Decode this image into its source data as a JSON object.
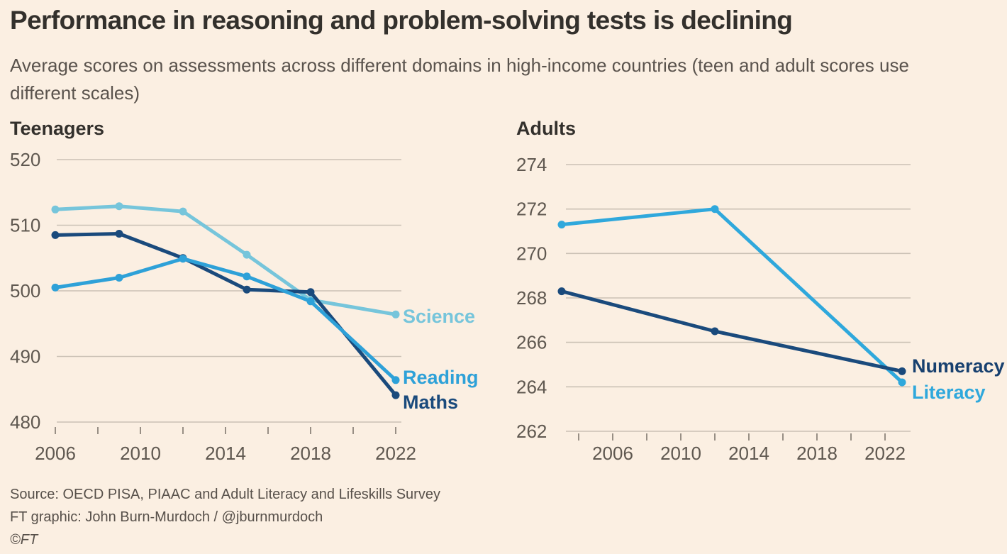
{
  "header": {
    "title": "Performance in reasoning and problem-solving tests is declining",
    "subtitle": "Average scores on assessments across different domains in high-income countries (teen and adult scores use different scales)"
  },
  "chart_data": [
    {
      "type": "line",
      "title": "Teenagers",
      "x": [
        2006,
        2009,
        2012,
        2015,
        2018,
        2022
      ],
      "series": [
        {
          "name": "Science",
          "color": "#76C5DB",
          "label_color": "#76C5DB",
          "values": [
            512.4,
            512.9,
            512.1,
            505.5,
            498.6,
            496.4
          ]
        },
        {
          "name": "Reading",
          "color": "#2EA1D8",
          "label_color": "#2EA1D8",
          "values": [
            500.5,
            502.0,
            504.9,
            502.2,
            498.4,
            486.4
          ]
        },
        {
          "name": "Maths",
          "color": "#1A4A7C",
          "label_color": "#1A4A7C",
          "values": [
            508.5,
            508.7,
            505.0,
            500.2,
            499.8,
            484.1
          ]
        }
      ],
      "ylim": [
        480,
        520
      ],
      "yticks": [
        "520",
        "510",
        "500",
        "490",
        "480"
      ],
      "ytick_values": [
        520,
        510,
        500,
        490,
        480
      ],
      "xticks": [
        2006,
        2008,
        2010,
        2012,
        2014,
        2016,
        2018,
        2020,
        2022
      ],
      "xtick_labels": [
        "2006",
        "2010",
        "2014",
        "2018",
        "2022"
      ],
      "xtick_label_values": [
        2006,
        2010,
        2014,
        2018,
        2022
      ],
      "grid": true,
      "legend_position": "line-end-labels"
    },
    {
      "type": "line",
      "title": "Adults",
      "x": [
        2003,
        2012,
        2023
      ],
      "series": [
        {
          "name": "Numeracy",
          "color": "#1A4A7C",
          "label_color": "#17406F",
          "values": [
            268.3,
            266.5,
            264.7
          ]
        },
        {
          "name": "Literacy",
          "color": "#2FA8DC",
          "label_color": "#2FA8DC",
          "values": [
            271.3,
            272.0,
            264.2
          ]
        }
      ],
      "ylim": [
        262,
        274
      ],
      "yticks": [
        "274",
        "272",
        "270",
        "268",
        "266",
        "264",
        "262"
      ],
      "ytick_values": [
        274,
        272,
        270,
        268,
        266,
        264,
        262
      ],
      "xticks": [
        2004,
        2006,
        2008,
        2010,
        2012,
        2014,
        2016,
        2018,
        2020,
        2022
      ],
      "xtick_labels": [
        "2006",
        "2010",
        "2014",
        "2018",
        "2022"
      ],
      "xtick_label_values": [
        2006,
        2010,
        2014,
        2018,
        2022
      ],
      "grid": true,
      "legend_position": "line-end-labels"
    }
  ],
  "footer": {
    "source": "Source: OECD PISA, PIAAC and Adult Literacy and Lifeskills Survey",
    "credit": "FT graphic: John Burn-Murdoch / @jburnmurdoch",
    "copyright": "©FT"
  },
  "colors": {
    "background": "#FBEFE2",
    "title_text": "#33302C",
    "subtitle_text": "#5A534D",
    "axis_text": "#5F5850",
    "gridline": "#CBC1B5",
    "tick_mark": "#988F85"
  }
}
